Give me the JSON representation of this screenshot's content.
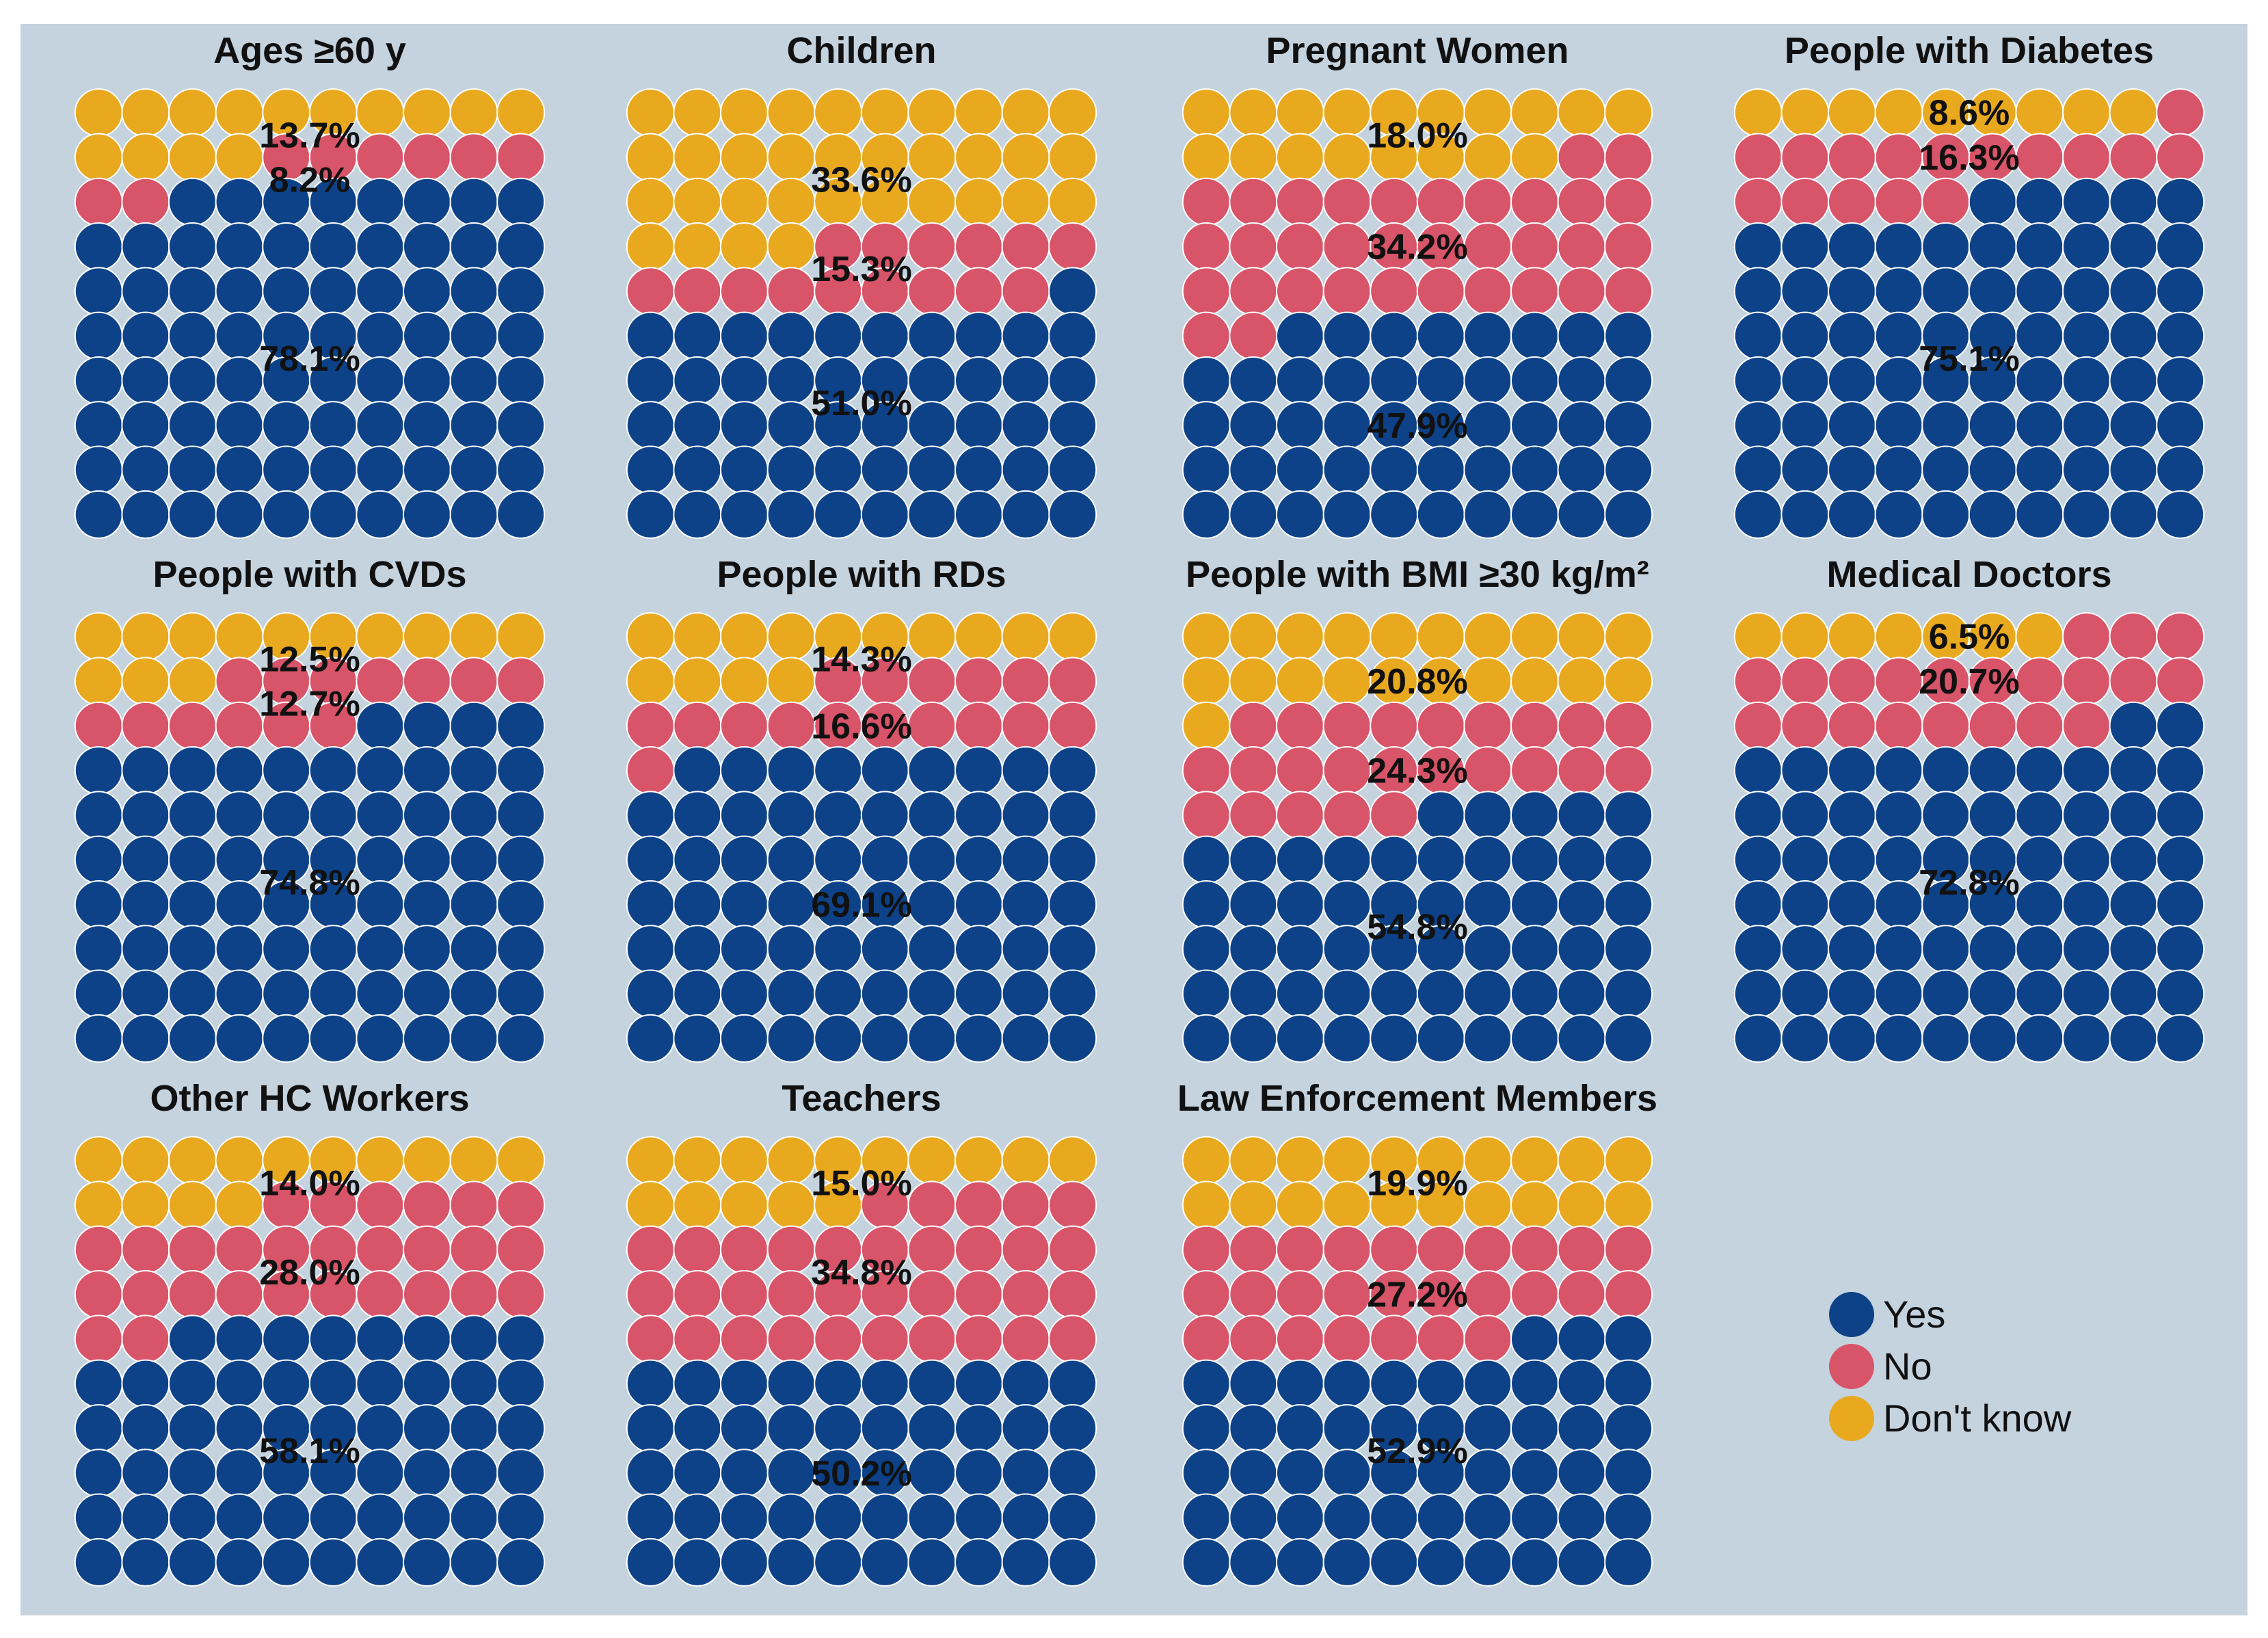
{
  "colors": {
    "yes": "#0d4288",
    "no": "#d85469",
    "dont_know": "#e9a91f",
    "panel": "#c5d3df"
  },
  "chart_data": {
    "type": "waffle",
    "grid": {
      "columns": 10,
      "rows": 10
    },
    "legend": {
      "position": "bottom-right",
      "entries": [
        {
          "key": "yes",
          "label": "Yes"
        },
        {
          "key": "no",
          "label": "No"
        },
        {
          "key": "dont_know",
          "label": "Don't know"
        }
      ]
    },
    "panels": [
      {
        "title": "Ages ≥60 y",
        "yes": 78.1,
        "no": 8.2,
        "dont_know": 13.7,
        "yes_label": "78.1%",
        "no_label": "8.2%",
        "dont_know_label": "13.7%"
      },
      {
        "title": "Children",
        "yes": 51.0,
        "no": 15.3,
        "dont_know": 33.6,
        "yes_label": "51.0%",
        "no_label": "15.3%",
        "dont_know_label": "33.6%"
      },
      {
        "title": "Pregnant Women",
        "yes": 47.9,
        "no": 34.2,
        "dont_know": 18.0,
        "yes_label": "47.9%",
        "no_label": "34.2%",
        "dont_know_label": "18.0%"
      },
      {
        "title": "People with Diabetes",
        "yes": 75.1,
        "no": 16.3,
        "dont_know": 8.6,
        "yes_label": "75.1%",
        "no_label": "16.3%",
        "dont_know_label": "8.6%"
      },
      {
        "title": "People with CVDs",
        "yes": 74.8,
        "no": 12.7,
        "dont_know": 12.5,
        "yes_label": "74.8%",
        "no_label": "12.7%",
        "dont_know_label": "12.5%"
      },
      {
        "title": "People with RDs",
        "yes": 69.1,
        "no": 16.6,
        "dont_know": 14.3,
        "yes_label": "69.1%",
        "no_label": "16.6%",
        "dont_know_label": "14.3%"
      },
      {
        "title": "People with BMI ≥30 kg/m²",
        "yes": 54.8,
        "no": 24.3,
        "dont_know": 20.8,
        "yes_label": "54.8%",
        "no_label": "24.3%",
        "dont_know_label": "20.8%"
      },
      {
        "title": "Medical Doctors",
        "yes": 72.8,
        "no": 20.7,
        "dont_know": 6.5,
        "yes_label": "72.8%",
        "no_label": "20.7%",
        "dont_know_label": "6.5%"
      },
      {
        "title": "Other HC Workers",
        "yes": 58.1,
        "no": 28.0,
        "dont_know": 14.0,
        "yes_label": "58.1%",
        "no_label": "28.0%",
        "dont_know_label": "14.0%"
      },
      {
        "title": "Teachers",
        "yes": 50.2,
        "no": 34.8,
        "dont_know": 15.0,
        "yes_label": "50.2%",
        "no_label": "34.8%",
        "dont_know_label": "15.0%"
      },
      {
        "title": "Law Enforcement Members",
        "yes": 52.9,
        "no": 27.2,
        "dont_know": 19.9,
        "yes_label": "52.9%",
        "no_label": "27.2%",
        "dont_know_label": "19.9%"
      }
    ]
  }
}
